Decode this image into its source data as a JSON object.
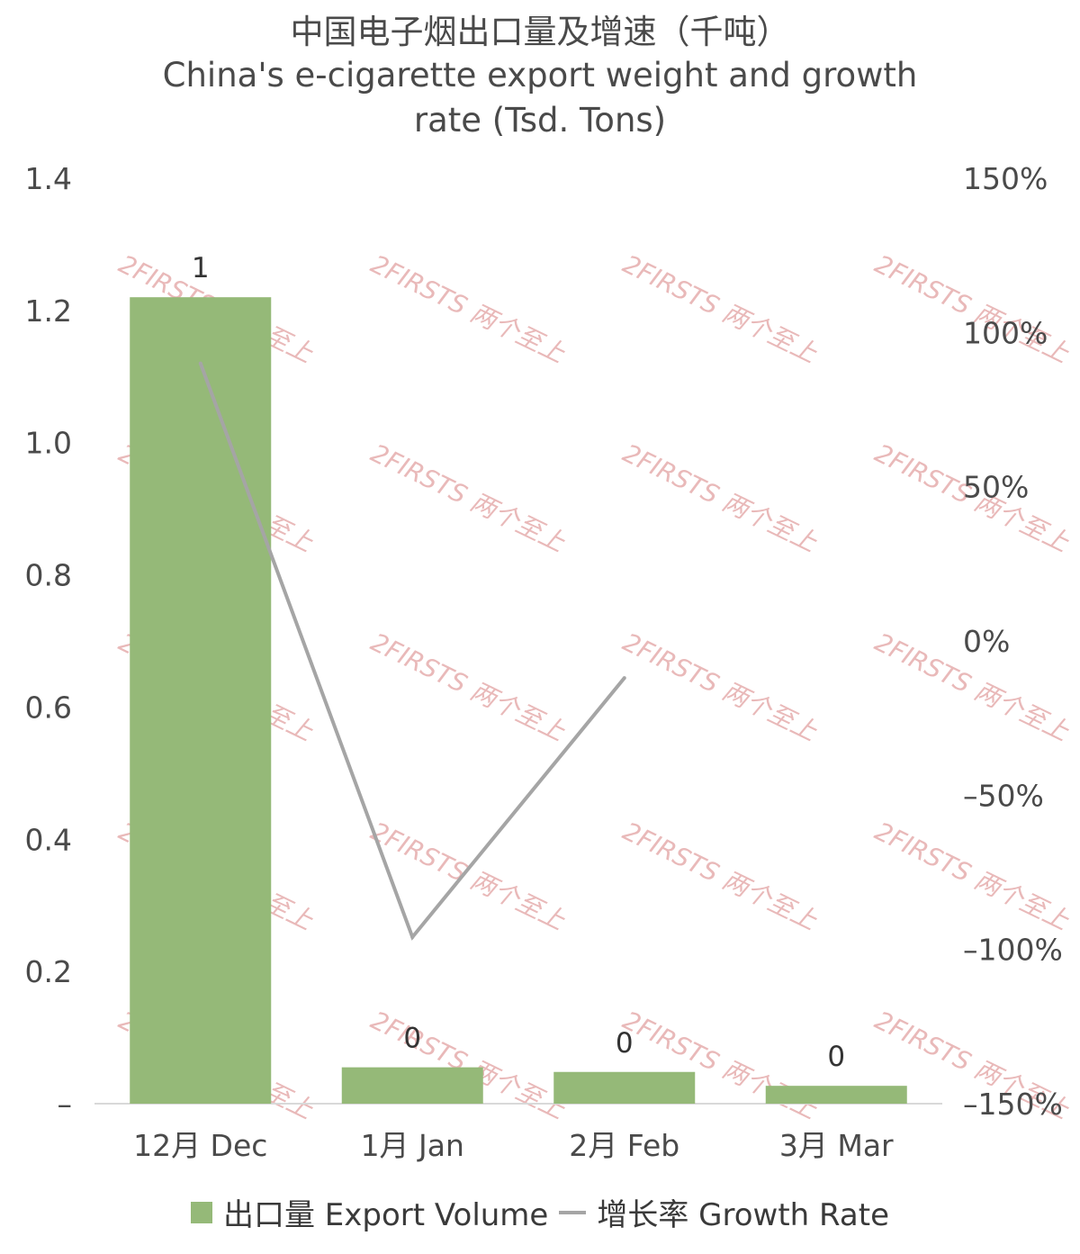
{
  "chart_data": {
    "type": "bar",
    "title": "中国电子烟出口量及增速（千吨）",
    "subtitle_lines": [
      "China's e-cigarette export weight and growth",
      "rate (Tsd. Tons)"
    ],
    "categories": [
      "12月 Dec",
      "1月 Jan",
      "2月 Feb",
      "3月 Mar"
    ],
    "series": [
      {
        "name": "出口量 Export Volume",
        "type": "bar",
        "axis": "left",
        "color": "#95b978",
        "values": [
          1.22,
          0.055,
          0.048,
          0.027
        ],
        "data_labels": [
          "1",
          "0",
          "0",
          "0"
        ]
      },
      {
        "name": "增长率 Growth Rate",
        "type": "line",
        "axis": "right",
        "color": "#a5a5a5",
        "values": [
          90,
          -96,
          -12,
          null
        ]
      }
    ],
    "y_left": {
      "min": 0,
      "max": 1.4,
      "ticks": [
        "–",
        "0.2",
        "0.4",
        "0.6",
        "0.8",
        "1.0",
        "1.2",
        "1.4"
      ]
    },
    "y_right": {
      "min": -150,
      "max": 150,
      "ticks": [
        "–150%",
        "–100%",
        "–50%",
        "0%",
        "50%",
        "100%",
        "150%"
      ]
    },
    "legend_position": "bottom",
    "grid": false,
    "watermark": "2FIRSTS 两个至上"
  }
}
